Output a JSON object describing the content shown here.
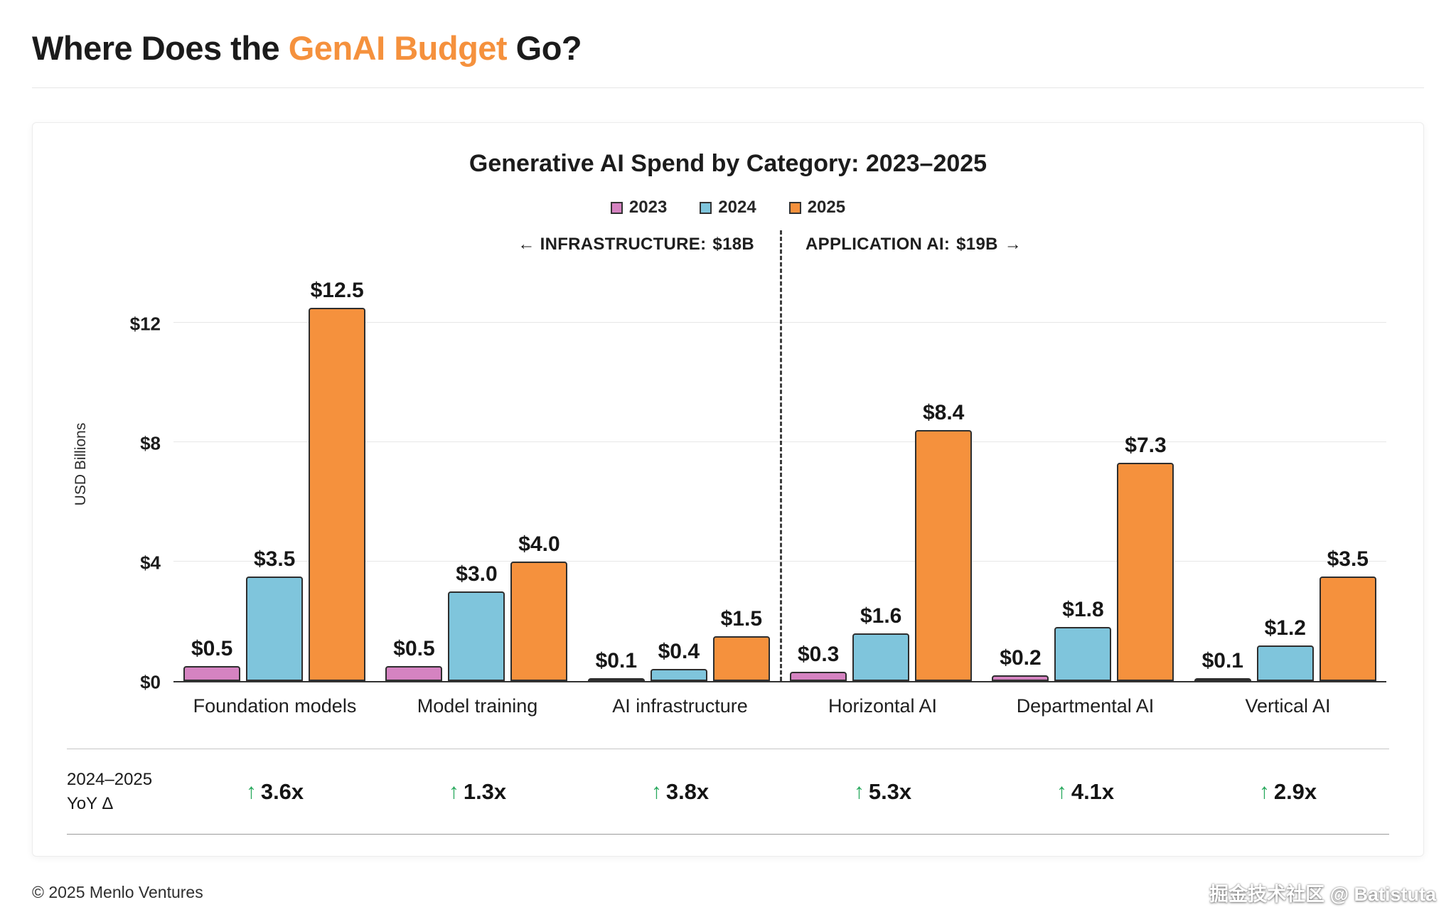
{
  "page": {
    "title_prefix": "Where Does the ",
    "title_accent": "GenAI Budget",
    "title_suffix": " Go?",
    "footer_left": "© 2025 Menlo Ventures",
    "watermark": "掘金技术社区 @ Batistuta"
  },
  "colors": {
    "accent_orange": "#F5913D",
    "series_2023": "#D583C1",
    "series_2024": "#7FC5DC",
    "series_2025": "#F5913D",
    "yoy_green": "#27A85C",
    "bar_border": "#2E2E2E",
    "gridline": "#E7E7E7"
  },
  "chart_data": {
    "type": "bar",
    "title": "Generative AI Spend by Category: 2023–2025",
    "xlabel": "",
    "ylabel": "USD Billions",
    "ylim": [
      0,
      13
    ],
    "grid": true,
    "legend_position": "top",
    "yticks": [
      0,
      4,
      8,
      12
    ],
    "ytick_labels": [
      "$0",
      "$4",
      "$8",
      "$12"
    ],
    "categories": [
      "Foundation models",
      "Model training",
      "AI infrastructure",
      "Horizontal AI",
      "Departmental AI",
      "Vertical AI"
    ],
    "series": [
      {
        "name": "2023",
        "color": "#D583C1",
        "values": [
          0.5,
          0.5,
          0.1,
          0.3,
          0.2,
          0.1
        ]
      },
      {
        "name": "2024",
        "color": "#7FC5DC",
        "values": [
          3.5,
          3.0,
          0.4,
          1.6,
          1.8,
          1.2
        ]
      },
      {
        "name": "2025",
        "color": "#F5913D",
        "values": [
          12.5,
          4.0,
          1.5,
          8.4,
          7.3,
          3.5
        ]
      }
    ],
    "annotations": {
      "left": {
        "text": "← INFRASTRUCTURE:",
        "value": "$18B"
      },
      "right": {
        "text": "APPLICATION AI:",
        "value": "$19B",
        "arrow": "→"
      }
    },
    "yoy": {
      "label_line1": "2024–2025",
      "label_line2": "YoY Δ",
      "arrow": "↑",
      "arrow_color": "#27A85C",
      "values": [
        "3.6x",
        "1.3x",
        "3.8x",
        "5.3x",
        "4.1x",
        "2.9x"
      ]
    }
  }
}
